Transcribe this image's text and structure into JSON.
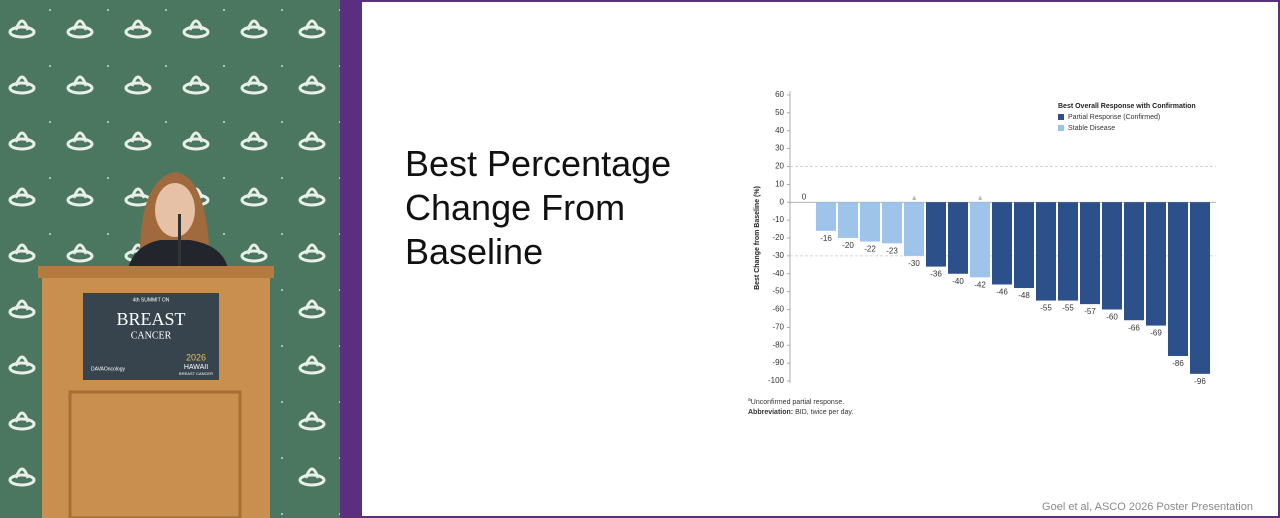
{
  "video": {
    "podium": {
      "edition": "4th SUMMIT ON",
      "name_line1": "BREAST",
      "name_line2": "CANCER",
      "sponsor": "DAVAOncology",
      "year": "2026",
      "location": "HAWAII",
      "location_sub": "BREAST CANCER"
    }
  },
  "chart_data": {
    "type": "bar",
    "title": "Best Percentage Change From Baseline",
    "ylabel": "Best Change from Baseline (%)",
    "ylim": [
      -100,
      60
    ],
    "yticks": [
      -100,
      -90,
      -80,
      -70,
      -60,
      -50,
      -40,
      -30,
      -20,
      -10,
      0,
      10,
      20,
      30,
      40,
      50,
      60
    ],
    "reference_lines": [
      20,
      -30
    ],
    "legend_title": "Best Overall Response with Confirmation",
    "legend_position": "upper right",
    "series": [
      {
        "name": "Partial Response (Confirmed)",
        "color": "#2c5089",
        "values": [
          null,
          null,
          null,
          null,
          null,
          null,
          -36,
          -40,
          null,
          -46,
          -48,
          -55,
          -55,
          -57,
          -60,
          -66,
          -69,
          -86,
          -96
        ]
      },
      {
        "name": "Stable Disease",
        "color": "#9fc4ea",
        "values": [
          0,
          -16,
          -20,
          -22,
          -23,
          -30,
          null,
          null,
          -42,
          null,
          null,
          null,
          null,
          null,
          null,
          null,
          null,
          null,
          null
        ]
      }
    ],
    "markers": [
      null,
      null,
      null,
      null,
      null,
      "a",
      null,
      null,
      "a",
      null,
      null,
      null,
      null,
      null,
      null,
      null,
      null,
      null,
      null
    ],
    "footnote": {
      "marker": "a",
      "text": "Unconfirmed partial response."
    },
    "abbreviation": {
      "label": "Abbreviation:",
      "text": "BID, twice per day."
    }
  },
  "citation": "Goel et al, ASCO 2026 Poster Presentation"
}
